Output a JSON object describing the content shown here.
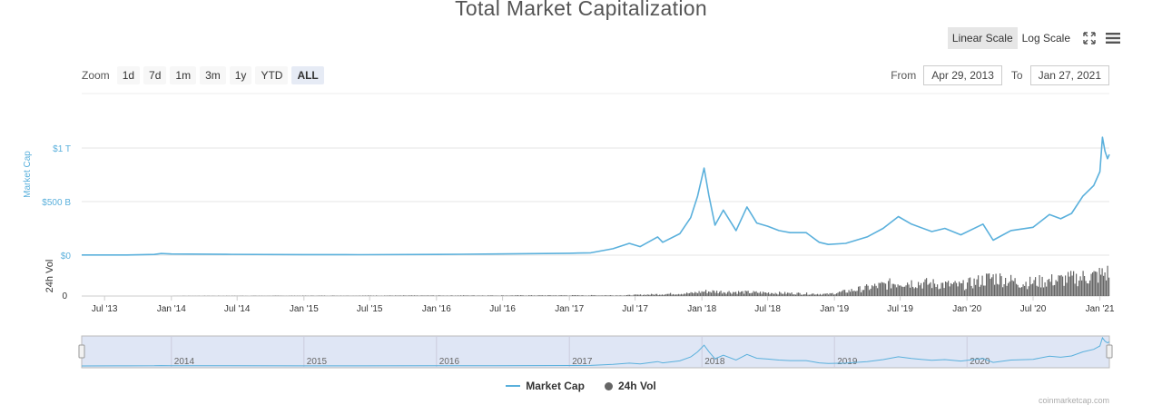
{
  "title": "Total Market Capitalization",
  "zoom": {
    "label": "Zoom",
    "buttons": [
      "1d",
      "7d",
      "1m",
      "3m",
      "1y",
      "YTD",
      "ALL"
    ],
    "active": "ALL"
  },
  "range": {
    "from_label": "From",
    "from_value": "Apr 29, 2013",
    "to_label": "To",
    "to_value": "Jan 27, 2021"
  },
  "scale": {
    "linear_label": "Linear Scale",
    "log_label": "Log Scale",
    "active": "linear"
  },
  "legend": {
    "market_cap": "Market Cap",
    "vol": "24h Vol"
  },
  "colors": {
    "market_cap": "#5ab0dc",
    "vol": "#666666",
    "navigator_fill": "#dfe6f5"
  },
  "icons": {
    "fullscreen": "expand-arrows-icon",
    "menu": "hamburger-menu-icon"
  },
  "credit": "coinmarketcap.com",
  "chart_data": {
    "type": "line",
    "title": "Total Market Capitalization",
    "x_range": [
      "2013-04-29",
      "2021-01-27"
    ],
    "x_ticks": [
      "Jul '13",
      "Jan '14",
      "Jul '14",
      "Jan '15",
      "Jul '15",
      "Jan '16",
      "Jul '16",
      "Jan '17",
      "Jul '17",
      "Jan '18",
      "Jul '18",
      "Jan '19",
      "Jul '19",
      "Jan '20",
      "Jul '20",
      "Jan '21"
    ],
    "navigator_ticks": [
      "2014",
      "2015",
      "2016",
      "2017",
      "2018",
      "2019",
      "2020"
    ],
    "ylabel": "Market Cap",
    "y_ticks": [
      "$0",
      "$500 B",
      "$1 T"
    ],
    "ylim": [
      0,
      1000
    ],
    "vol_ylabel": "24h Vol",
    "vol_y_ticks": [
      "0"
    ],
    "grid": true,
    "legend_position": "bottom-center",
    "series": [
      {
        "name": "Market Cap",
        "unit": "billion USD",
        "points": [
          [
            "2013-04-29",
            1.5
          ],
          [
            "2013-09-01",
            2
          ],
          [
            "2013-11-15",
            7
          ],
          [
            "2013-12-04",
            15
          ],
          [
            "2014-01-01",
            11
          ],
          [
            "2014-06-01",
            8
          ],
          [
            "2015-01-01",
            5
          ],
          [
            "2015-06-01",
            4
          ],
          [
            "2016-01-01",
            7
          ],
          [
            "2016-06-15",
            11
          ],
          [
            "2017-01-01",
            18
          ],
          [
            "2017-03-01",
            22
          ],
          [
            "2017-05-01",
            60
          ],
          [
            "2017-06-15",
            110
          ],
          [
            "2017-07-15",
            80
          ],
          [
            "2017-09-01",
            170
          ],
          [
            "2017-09-15",
            120
          ],
          [
            "2017-11-01",
            200
          ],
          [
            "2017-12-01",
            350
          ],
          [
            "2017-12-20",
            550
          ],
          [
            "2018-01-07",
            813
          ],
          [
            "2018-01-20",
            560
          ],
          [
            "2018-02-06",
            280
          ],
          [
            "2018-03-01",
            420
          ],
          [
            "2018-04-05",
            230
          ],
          [
            "2018-05-05",
            450
          ],
          [
            "2018-06-01",
            300
          ],
          [
            "2018-07-01",
            270
          ],
          [
            "2018-08-01",
            230
          ],
          [
            "2018-09-01",
            210
          ],
          [
            "2018-10-15",
            210
          ],
          [
            "2018-11-20",
            120
          ],
          [
            "2018-12-15",
            100
          ],
          [
            "2019-02-01",
            110
          ],
          [
            "2019-04-01",
            170
          ],
          [
            "2019-05-15",
            250
          ],
          [
            "2019-06-26",
            360
          ],
          [
            "2019-08-01",
            290
          ],
          [
            "2019-09-26",
            220
          ],
          [
            "2019-11-01",
            250
          ],
          [
            "2019-12-15",
            190
          ],
          [
            "2020-02-14",
            290
          ],
          [
            "2020-03-13",
            140
          ],
          [
            "2020-05-01",
            230
          ],
          [
            "2020-07-01",
            260
          ],
          [
            "2020-08-15",
            380
          ],
          [
            "2020-09-15",
            340
          ],
          [
            "2020-10-15",
            390
          ],
          [
            "2020-11-15",
            550
          ],
          [
            "2020-12-15",
            650
          ],
          [
            "2021-01-01",
            780
          ],
          [
            "2021-01-08",
            1100
          ],
          [
            "2021-01-15",
            970
          ],
          [
            "2021-01-22",
            900
          ],
          [
            "2021-01-27",
            940
          ]
        ]
      },
      {
        "name": "24h Vol",
        "unit": "relative",
        "points": [
          [
            "2013-04-29",
            0
          ],
          [
            "2017-06-01",
            0.03
          ],
          [
            "2017-12-01",
            0.12
          ],
          [
            "2018-01-07",
            0.2
          ],
          [
            "2018-06-01",
            0.15
          ],
          [
            "2018-12-15",
            0.08
          ],
          [
            "2019-04-01",
            0.35
          ],
          [
            "2019-07-01",
            0.6
          ],
          [
            "2019-12-15",
            0.45
          ],
          [
            "2020-03-13",
            0.8
          ],
          [
            "2020-06-01",
            0.55
          ],
          [
            "2020-09-15",
            0.7
          ],
          [
            "2020-12-15",
            0.85
          ],
          [
            "2021-01-27",
            1.0
          ]
        ]
      }
    ]
  }
}
